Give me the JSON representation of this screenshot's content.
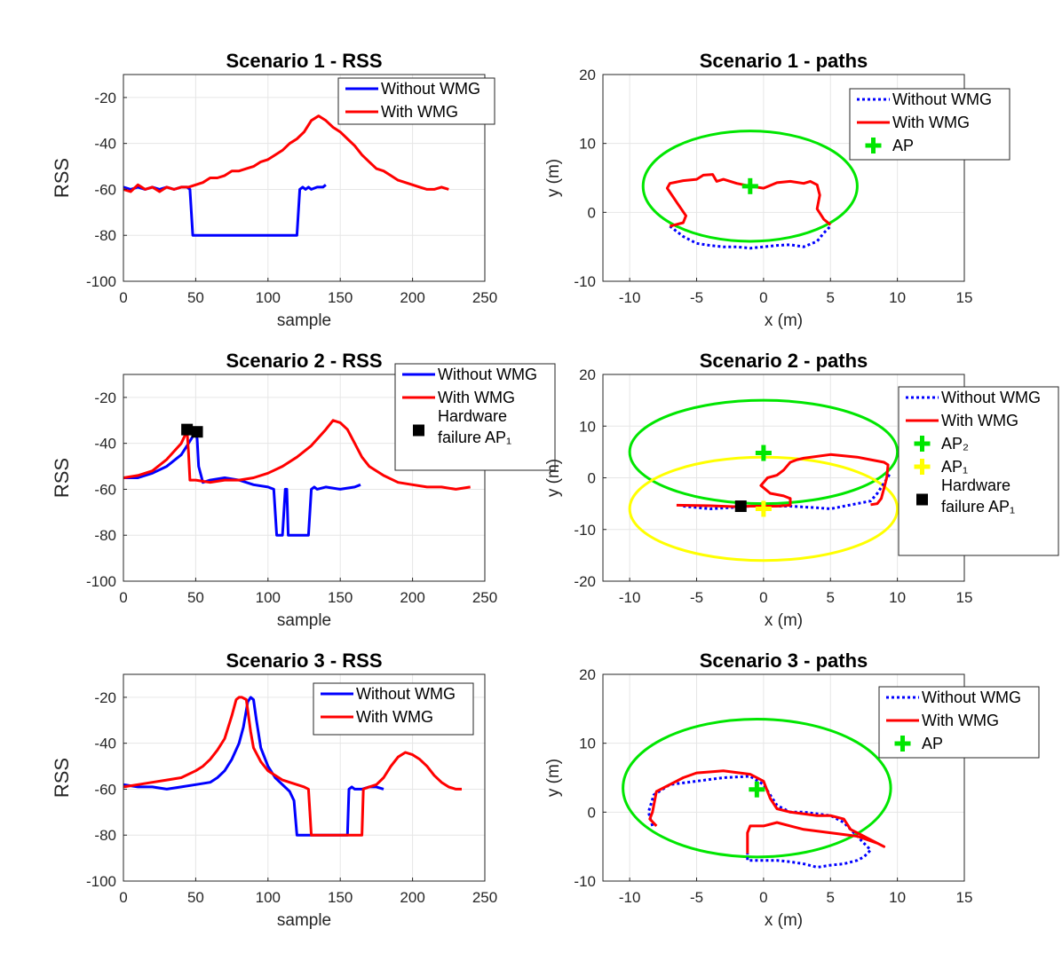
{
  "figure": {
    "name": "RSS and paths per scenario"
  },
  "colors": {
    "without": "#0000ff",
    "with": "#ff0000",
    "ap_green": "#00e600",
    "ap_yellow": "#ffff00",
    "hw": "#000000",
    "grid": "#e6e6e6"
  },
  "chart_data": [
    {
      "type": "line",
      "id": "s1rss",
      "title": "Scenario 1 - RSS",
      "xlabel": "sample",
      "ylabel": "RSS",
      "xlim": [
        0,
        250
      ],
      "ylim": [
        -100,
        -10
      ],
      "xticks": [
        0,
        50,
        100,
        150,
        200,
        250
      ],
      "yticks": [
        -100,
        -80,
        -60,
        -40,
        -20
      ],
      "legend": {
        "position": "top-right",
        "entries": [
          "Without WMG",
          "With WMG"
        ]
      },
      "series": [
        {
          "name": "Without WMG",
          "color": "#0000ff",
          "style": "solid",
          "x": [
            0,
            5,
            10,
            15,
            20,
            25,
            30,
            35,
            40,
            44,
            46,
            47,
            48,
            50,
            60,
            80,
            100,
            110,
            120,
            121,
            122,
            124,
            126,
            128,
            130,
            134,
            138,
            140
          ],
          "y": [
            -59,
            -60,
            -59,
            -60,
            -59,
            -60,
            -59,
            -60,
            -59,
            -59,
            -60,
            -70,
            -80,
            -80,
            -80,
            -80,
            -80,
            -80,
            -80,
            -70,
            -60,
            -59,
            -60,
            -59,
            -60,
            -59,
            -59,
            -58
          ]
        },
        {
          "name": "With WMG",
          "color": "#ff0000",
          "style": "solid",
          "x": [
            0,
            5,
            10,
            15,
            20,
            25,
            30,
            35,
            40,
            45,
            50,
            55,
            60,
            65,
            70,
            75,
            80,
            85,
            90,
            95,
            100,
            105,
            110,
            115,
            120,
            125,
            130,
            135,
            140,
            145,
            150,
            155,
            160,
            165,
            170,
            175,
            180,
            185,
            190,
            195,
            200,
            205,
            210,
            215,
            220,
            225
          ],
          "y": [
            -60,
            -61,
            -58,
            -60,
            -59,
            -61,
            -59,
            -60,
            -59,
            -59,
            -58,
            -57,
            -55,
            -55,
            -54,
            -52,
            -52,
            -51,
            -50,
            -48,
            -47,
            -45,
            -43,
            -40,
            -38,
            -35,
            -30,
            -28,
            -30,
            -33,
            -35,
            -38,
            -41,
            -45,
            -48,
            -51,
            -52,
            -54,
            -56,
            -57,
            -58,
            -59,
            -60,
            -60,
            -59,
            -60
          ]
        }
      ]
    },
    {
      "type": "line",
      "id": "s1path",
      "title": "Scenario 1 - paths",
      "xlabel": "x (m)",
      "ylabel": "y (m)",
      "xlim": [
        -12,
        15
      ],
      "ylim": [
        -10,
        20
      ],
      "xticks": [
        -10,
        -5,
        0,
        5,
        10,
        15
      ],
      "yticks": [
        -10,
        0,
        10,
        20
      ],
      "legend": {
        "position": "top-right",
        "entries": [
          "Without WMG",
          "With WMG",
          "AP"
        ]
      },
      "circles": [
        {
          "cx": -1,
          "cy": 3.8,
          "rx": 8,
          "ry": 8,
          "color": "#00e600"
        }
      ],
      "markers": [
        {
          "name": "AP",
          "kind": "plus",
          "x": -1,
          "y": 3.8,
          "color": "#00e600"
        }
      ],
      "series": [
        {
          "name": "Without WMG",
          "color": "#0000ff",
          "style": "dotted",
          "x": [
            -7,
            -6,
            -5,
            -4,
            -3,
            -2,
            -1,
            0,
            1,
            2,
            3,
            4,
            4.5,
            5
          ],
          "y": [
            -2,
            -3.5,
            -4.5,
            -4.8,
            -5,
            -5,
            -5.2,
            -5,
            -4.8,
            -4.7,
            -5,
            -4.2,
            -3,
            -2
          ]
        },
        {
          "name": "With WMG",
          "color": "#ff0000",
          "style": "solid",
          "x": [
            -7,
            -6,
            -5.8,
            -6.5,
            -7.2,
            -7,
            -6,
            -5,
            -4.5,
            -3.8,
            -3.5,
            -3,
            -2,
            -1,
            0,
            1,
            2,
            3,
            3.5,
            4,
            4.2,
            4,
            4.5,
            5
          ],
          "y": [
            -2,
            -1.5,
            -0.5,
            1.5,
            3.5,
            4.2,
            4.6,
            4.8,
            5.4,
            5.5,
            4.5,
            4.8,
            4.2,
            3.8,
            3.5,
            4.3,
            4.5,
            4.2,
            4.5,
            4,
            2.5,
            0.5,
            -1,
            -1.8
          ]
        }
      ]
    },
    {
      "type": "line",
      "id": "s2rss",
      "title": "Scenario 2 - RSS",
      "xlabel": "sample",
      "ylabel": "RSS",
      "xlim": [
        0,
        250
      ],
      "ylim": [
        -100,
        -10
      ],
      "xticks": [
        0,
        50,
        100,
        150,
        200,
        250
      ],
      "yticks": [
        -100,
        -80,
        -60,
        -40,
        -20
      ],
      "legend": {
        "position": "outside-right",
        "entries": [
          "Without WMG",
          "With WMG",
          "Hardware failure AP₁"
        ]
      },
      "markers": [
        {
          "name": "Hardware failure AP1",
          "kind": "square",
          "x": 44,
          "y": -34,
          "color": "#000000"
        },
        {
          "name": "Hardware failure AP1",
          "kind": "square",
          "x": 51,
          "y": -35,
          "color": "#000000"
        }
      ],
      "series": [
        {
          "name": "Without WMG",
          "color": "#0000ff",
          "style": "solid",
          "x": [
            0,
            10,
            20,
            30,
            40,
            45,
            48,
            50,
            51,
            52,
            55,
            60,
            70,
            80,
            90,
            100,
            104,
            106,
            108,
            110,
            112,
            113,
            114,
            116,
            118,
            120,
            125,
            128,
            130,
            132,
            134,
            140,
            150,
            160,
            164
          ],
          "y": [
            -55,
            -55,
            -53,
            -50,
            -45,
            -40,
            -37,
            -35,
            -38,
            -50,
            -57,
            -56,
            -55,
            -56,
            -58,
            -59,
            -60,
            -80,
            -80,
            -80,
            -60,
            -60,
            -80,
            -80,
            -80,
            -80,
            -80,
            -80,
            -60,
            -59,
            -60,
            -59,
            -60,
            -59,
            -58
          ]
        },
        {
          "name": "With WMG",
          "color": "#ff0000",
          "style": "solid",
          "x": [
            0,
            10,
            20,
            30,
            40,
            43,
            44,
            45,
            46,
            50,
            60,
            70,
            80,
            90,
            100,
            110,
            120,
            130,
            140,
            145,
            150,
            155,
            160,
            165,
            170,
            180,
            190,
            200,
            210,
            220,
            230,
            240
          ],
          "y": [
            -55,
            -54,
            -52,
            -47,
            -40,
            -36,
            -34,
            -44,
            -56,
            -56,
            -57,
            -56,
            -56,
            -55,
            -53,
            -50,
            -46,
            -41,
            -34,
            -30,
            -31,
            -34,
            -40,
            -46,
            -50,
            -54,
            -57,
            -58,
            -59,
            -59,
            -60,
            -59
          ]
        }
      ]
    },
    {
      "type": "line",
      "id": "s2path",
      "title": "Scenario 2 - paths",
      "xlabel": "x (m)",
      "ylabel": "y (m)",
      "xlim": [
        -12,
        15
      ],
      "ylim": [
        -20,
        20
      ],
      "xticks": [
        -10,
        -5,
        0,
        5,
        10,
        15
      ],
      "yticks": [
        -20,
        -10,
        0,
        10,
        20
      ],
      "legend": {
        "position": "outside-right",
        "entries": [
          "Without WMG",
          "With WMG",
          "AP₂",
          "AP₁",
          "Hardware failure AP₁"
        ]
      },
      "circles": [
        {
          "cx": 0,
          "cy": 5,
          "rx": 10,
          "ry": 10,
          "color": "#00e600"
        },
        {
          "cx": 0,
          "cy": -6,
          "rx": 10,
          "ry": 10,
          "color": "#ffff00"
        }
      ],
      "markers": [
        {
          "name": "AP2",
          "kind": "plus",
          "x": 0,
          "y": 4.8,
          "color": "#00e600"
        },
        {
          "name": "AP1",
          "kind": "plus",
          "x": 0,
          "y": -6,
          "color": "#ffff00"
        },
        {
          "name": "Hardware failure AP1",
          "kind": "square",
          "x": -1.7,
          "y": -5.5,
          "color": "#000000"
        }
      ],
      "series": [
        {
          "name": "Without WMG",
          "color": "#0000ff",
          "style": "dotted",
          "x": [
            -6,
            -4,
            -2,
            -1,
            0,
            2,
            4,
            5,
            6,
            7,
            8,
            8.5,
            9,
            9.5
          ],
          "y": [
            -5.5,
            -6,
            -5.7,
            -5.5,
            -5.5,
            -5.5,
            -5.8,
            -6,
            -5.5,
            -5,
            -4.5,
            -3,
            -1,
            1
          ]
        },
        {
          "name": "With WMG",
          "color": "#ff0000",
          "style": "solid",
          "x": [
            -6.5,
            -4,
            -2,
            -1,
            0,
            1,
            2,
            2,
            1.5,
            0.5,
            -0.2,
            0.3,
            1,
            1.5,
            2,
            2.5,
            3,
            5,
            7,
            8,
            9,
            9.3,
            9.2,
            9,
            8.8,
            8.5,
            8
          ],
          "y": [
            -5.3,
            -5.4,
            -5.6,
            -5.5,
            -5.5,
            -5.5,
            -5.3,
            -4,
            -3.5,
            -3,
            -1.5,
            0,
            0.5,
            1.5,
            3,
            3.5,
            3.8,
            4.5,
            4,
            3.5,
            3,
            2.5,
            0,
            -2,
            -4,
            -5,
            -5.2
          ]
        }
      ]
    },
    {
      "type": "line",
      "id": "s3rss",
      "title": "Scenario 3 - RSS",
      "xlabel": "sample",
      "ylabel": "RSS",
      "xlim": [
        0,
        250
      ],
      "ylim": [
        -100,
        -10
      ],
      "xticks": [
        0,
        50,
        100,
        150,
        200,
        250
      ],
      "yticks": [
        -100,
        -80,
        -60,
        -40,
        -20
      ],
      "legend": {
        "position": "top-right",
        "entries": [
          "Without WMG",
          "With WMG"
        ]
      },
      "series": [
        {
          "name": "Without WMG",
          "color": "#0000ff",
          "style": "solid",
          "x": [
            0,
            10,
            20,
            30,
            40,
            50,
            60,
            65,
            70,
            75,
            80,
            83,
            86,
            88,
            90,
            92,
            95,
            100,
            105,
            110,
            115,
            118,
            120,
            125,
            130,
            140,
            150,
            155,
            156,
            158,
            160,
            165,
            170,
            175,
            180
          ],
          "y": [
            -58,
            -59,
            -59,
            -60,
            -59,
            -58,
            -57,
            -55,
            -52,
            -47,
            -40,
            -33,
            -22,
            -20,
            -21,
            -30,
            -42,
            -50,
            -55,
            -58,
            -61,
            -65,
            -80,
            -80,
            -80,
            -80,
            -80,
            -80,
            -60,
            -59,
            -60,
            -60,
            -59,
            -59,
            -60
          ]
        },
        {
          "name": "With WMG",
          "color": "#ff0000",
          "style": "solid",
          "x": [
            0,
            10,
            20,
            30,
            40,
            50,
            55,
            60,
            65,
            70,
            75,
            78,
            80,
            82,
            85,
            88,
            90,
            95,
            100,
            105,
            110,
            115,
            120,
            125,
            128,
            130,
            140,
            150,
            160,
            162,
            164,
            165,
            166,
            170,
            175,
            180,
            185,
            190,
            195,
            200,
            205,
            210,
            215,
            220,
            225,
            230,
            234
          ],
          "y": [
            -59,
            -58,
            -57,
            -56,
            -55,
            -52,
            -50,
            -47,
            -43,
            -38,
            -28,
            -21,
            -20,
            -20,
            -21,
            -35,
            -42,
            -48,
            -52,
            -54,
            -56,
            -57,
            -58,
            -59,
            -60,
            -80,
            -80,
            -80,
            -80,
            -80,
            -80,
            -80,
            -60,
            -59,
            -58,
            -55,
            -50,
            -46,
            -44,
            -45,
            -47,
            -50,
            -54,
            -57,
            -59,
            -60,
            -60
          ]
        }
      ]
    },
    {
      "type": "line",
      "id": "s3path",
      "title": "Scenario 3 - paths",
      "xlabel": "x (m)",
      "ylabel": "y (m)",
      "xlim": [
        -12,
        15
      ],
      "ylim": [
        -10,
        20
      ],
      "xticks": [
        -10,
        -5,
        0,
        5,
        10,
        15
      ],
      "yticks": [
        -10,
        0,
        10,
        20
      ],
      "legend": {
        "position": "top-right",
        "entries": [
          "Without WMG",
          "With WMG",
          "AP"
        ]
      },
      "circles": [
        {
          "cx": -0.5,
          "cy": 3.5,
          "rx": 10,
          "ry": 10,
          "color": "#00e600"
        }
      ],
      "markers": [
        {
          "name": "AP",
          "kind": "plus",
          "x": -0.5,
          "y": 3.3,
          "color": "#00e600"
        }
      ],
      "series": [
        {
          "name": "Without WMG",
          "color": "#0000ff",
          "style": "dotted",
          "x": [
            -8.3,
            -8.6,
            -8.2,
            -7,
            -5,
            -3,
            -1,
            0,
            0.5,
            1,
            2,
            3,
            5,
            6,
            6.5,
            7,
            7.5,
            8,
            7.5,
            7,
            6,
            5,
            4,
            3,
            2,
            1,
            0,
            -1.2,
            -1.2
          ],
          "y": [
            -2,
            0,
            2.5,
            4,
            4.5,
            5,
            5.2,
            4,
            2.5,
            1,
            0,
            0,
            -0.5,
            -1.5,
            -2.5,
            -3.5,
            -4.5,
            -5.5,
            -6.5,
            -7,
            -7.5,
            -7.7,
            -8,
            -7.5,
            -7.2,
            -7,
            -7,
            -7,
            -6
          ]
        },
        {
          "name": "With WMG",
          "color": "#ff0000",
          "style": "solid",
          "x": [
            -8,
            -8.5,
            -8.3,
            -8,
            -6,
            -5,
            -3,
            -1,
            0,
            0.5,
            1,
            2,
            4,
            5,
            6,
            6.5,
            7,
            8,
            9,
            8.5,
            7,
            5,
            3,
            2,
            1,
            0,
            -1,
            -1.2,
            -1.2
          ],
          "y": [
            -2,
            -1,
            0,
            3,
            5,
            5.7,
            6,
            5.5,
            4.5,
            2,
            0.5,
            0,
            -0.5,
            -0.5,
            -1,
            -2.5,
            -3,
            -4,
            -5,
            -4.5,
            -3.5,
            -3,
            -2.5,
            -2,
            -1.5,
            -2,
            -2,
            -3,
            -6
          ]
        }
      ]
    }
  ]
}
